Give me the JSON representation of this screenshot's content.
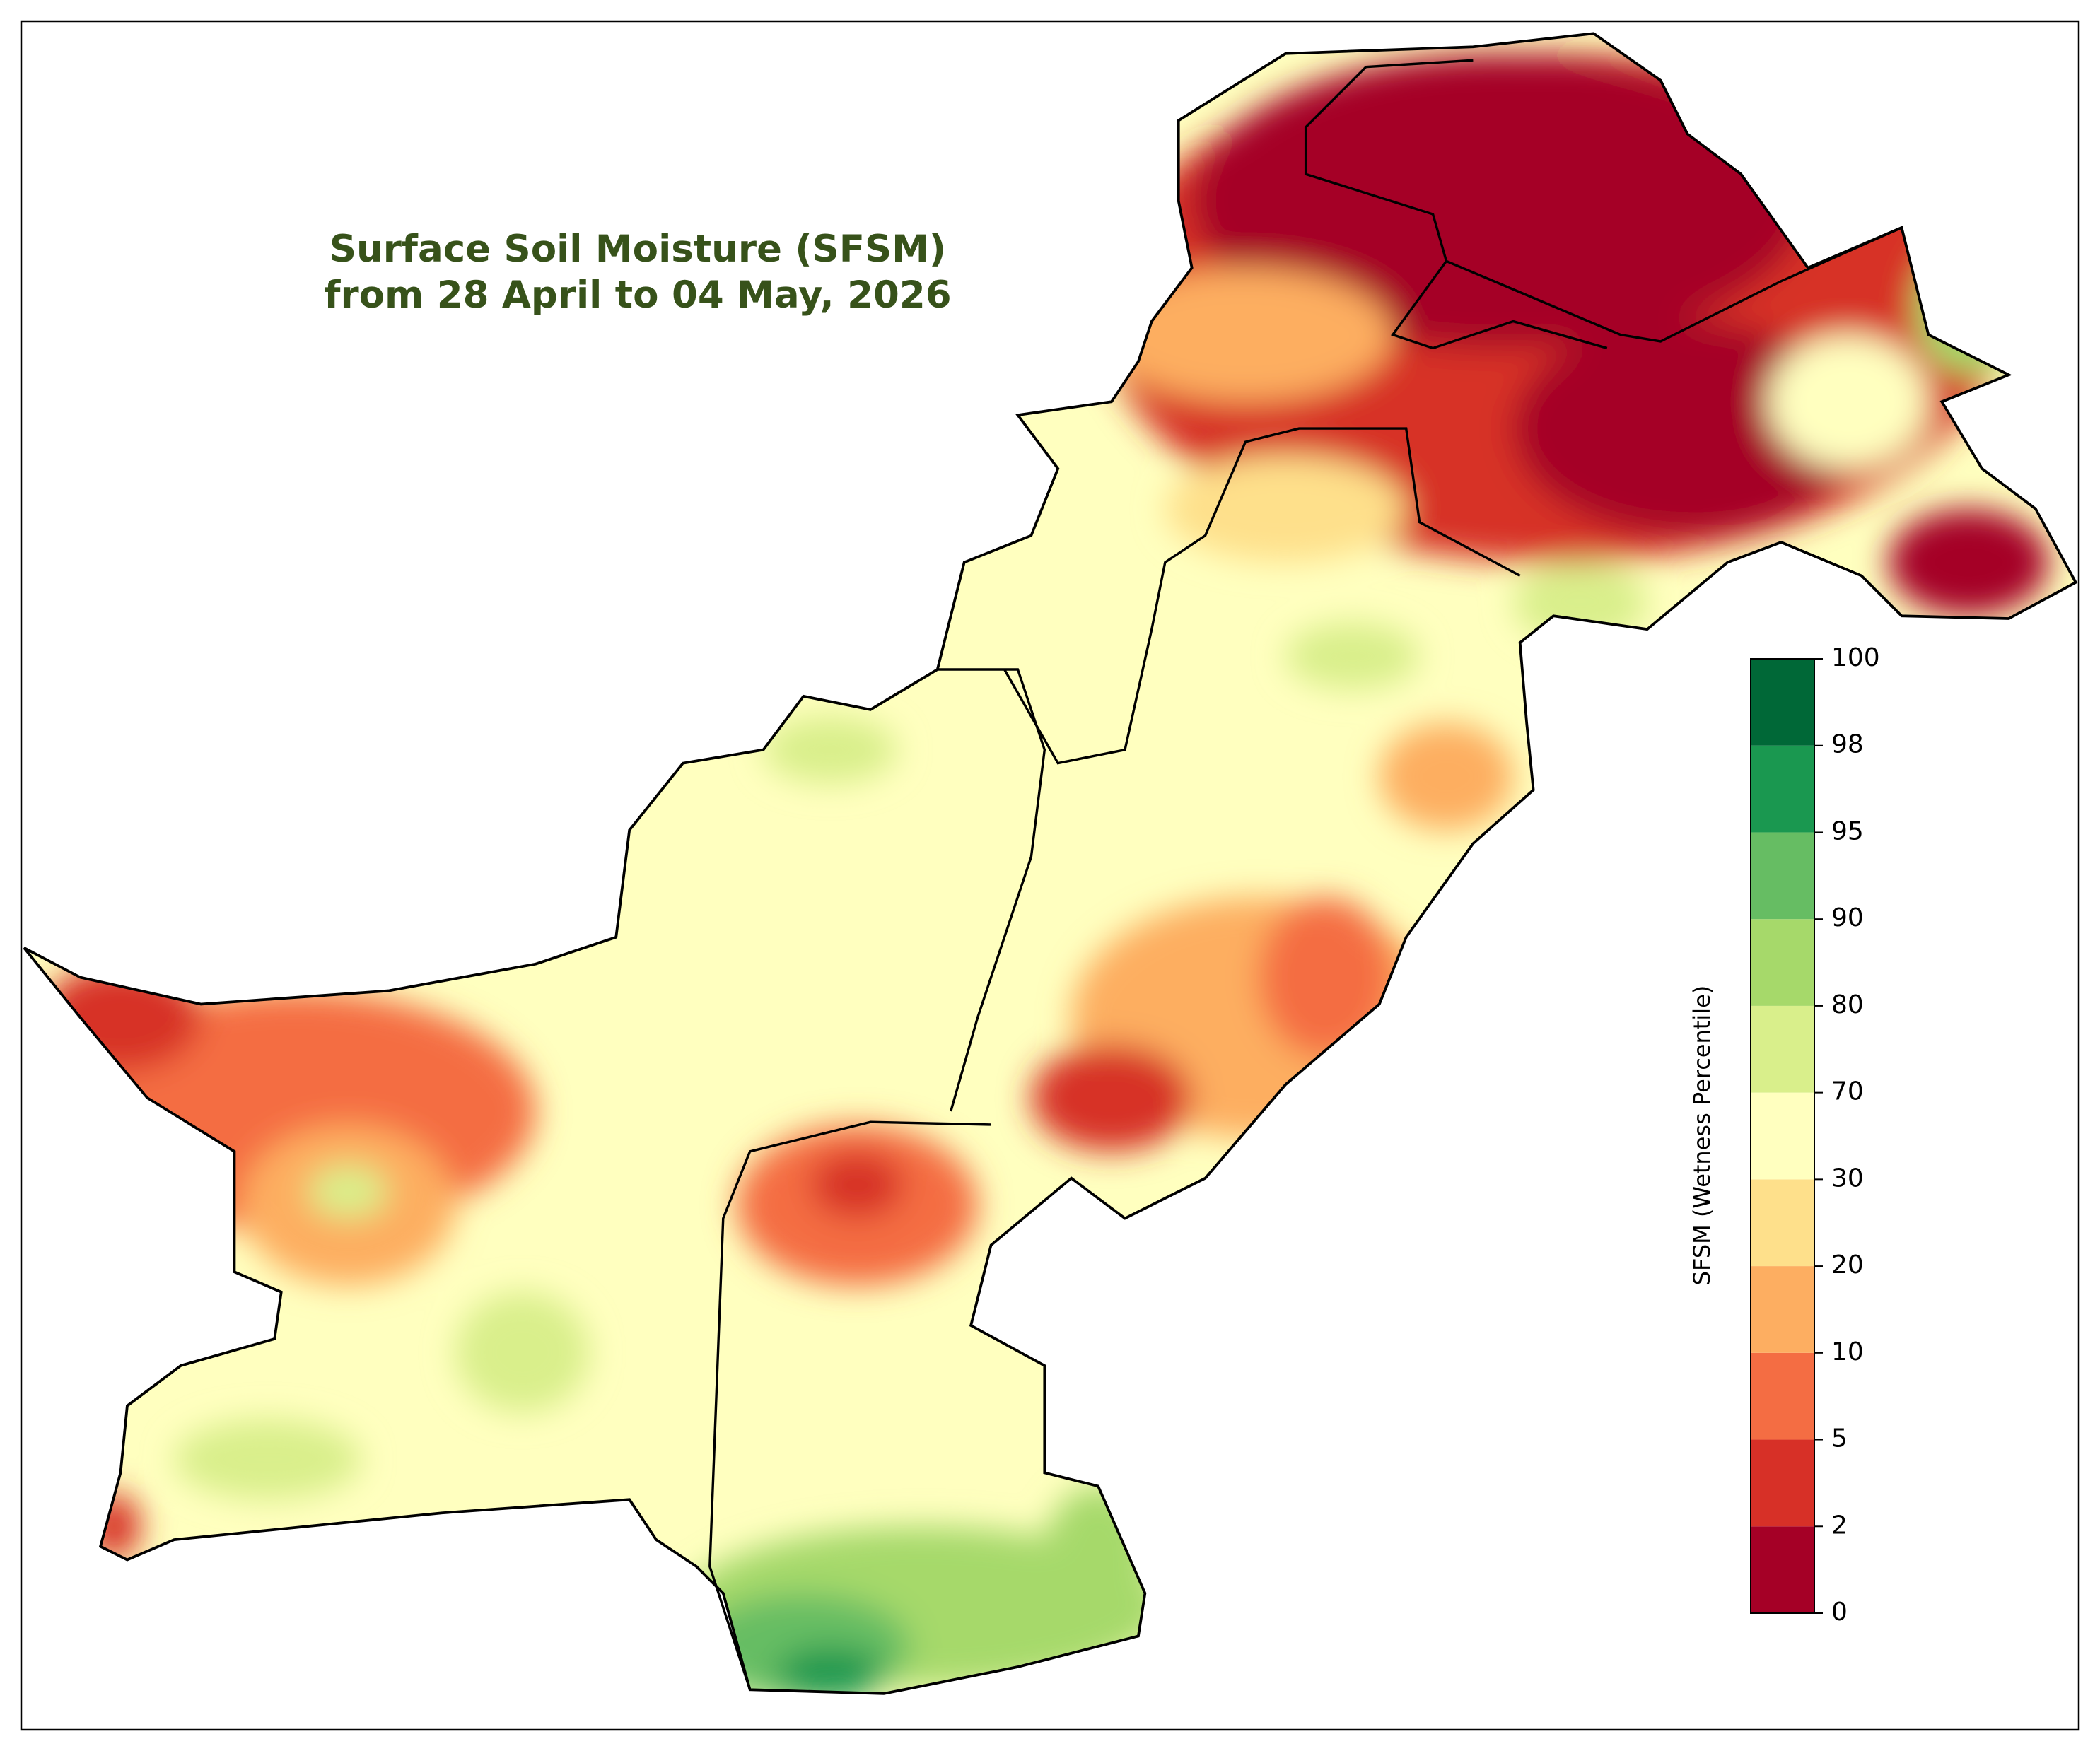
{
  "map": {
    "title": [
      "Surface Soil Moisture (SFSM)",
      "from 28 April to 04 May, 2026"
    ],
    "colorbar": {
      "label": "SFSM (Wetness Percentile)",
      "ticks": [
        0,
        2,
        5,
        10,
        20,
        30,
        70,
        80,
        90,
        95,
        98,
        100
      ],
      "colors": [
        "#a50026",
        "#d73027",
        "#f46d43",
        "#fdae61",
        "#fee08b",
        "#ffffbf",
        "#d9ef8b",
        "#a6d96a",
        "#66bd63",
        "#1a9850",
        "#006837"
      ]
    }
  }
}
